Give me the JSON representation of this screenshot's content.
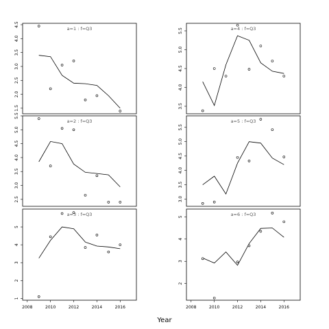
{
  "xlabel": "Year",
  "chart_data": [
    {
      "type": "scatter",
      "title": "a=1 : f=Q3",
      "x": [
        2009,
        2010,
        2011,
        2012,
        2013,
        2014,
        2016
      ],
      "points_y": [
        4.45,
        2.2,
        3.05,
        3.2,
        1.8,
        1.95,
        1.4
      ],
      "line_x": [
        2009,
        2010,
        2011,
        2012,
        2013,
        2014,
        2015,
        2016
      ],
      "line_y": [
        3.4,
        3.35,
        2.68,
        2.4,
        2.38,
        2.32,
        1.95,
        1.5
      ],
      "ylim": [
        1.3,
        4.55
      ],
      "xlim": [
        2007.6,
        2017.4
      ],
      "yticks": [
        1.5,
        2.0,
        2.5,
        3.0,
        3.5,
        4.0,
        4.5
      ],
      "ytick_labels": [
        "1.5",
        "2.0",
        "2.5",
        "3.0",
        "3.5",
        "4.0",
        "4.5"
      ]
    },
    {
      "type": "scatter",
      "title": "a=4 : f=Q3",
      "x": [
        2009,
        2010,
        2011,
        2012,
        2013,
        2014,
        2015,
        2016
      ],
      "points_y": [
        3.38,
        4.5,
        4.3,
        5.65,
        4.48,
        5.1,
        4.7,
        4.3
      ],
      "line_x": [
        2009,
        2010,
        2011,
        2012,
        2013,
        2014,
        2015,
        2016
      ],
      "line_y": [
        4.15,
        3.52,
        4.6,
        5.37,
        5.25,
        4.65,
        4.43,
        4.37
      ],
      "ylim": [
        3.3,
        5.7
      ],
      "xlim": [
        2007.6,
        2017.4
      ],
      "yticks": [
        3.5,
        4.0,
        4.5,
        5.0,
        5.5
      ],
      "ytick_labels": [
        "3.5",
        "4.0",
        "4.5",
        "5.0",
        "5.5"
      ]
    },
    {
      "type": "scatter",
      "title": "a=2 : f=Q3",
      "x": [
        2009,
        2010,
        2011,
        2012,
        2013,
        2014,
        2015,
        2016
      ],
      "points_y": [
        5.4,
        3.7,
        5.05,
        5.0,
        2.65,
        3.35,
        2.4,
        2.4
      ],
      "line_x": [
        2009,
        2010,
        2011,
        2012,
        2013,
        2014,
        2015,
        2016
      ],
      "line_y": [
        3.85,
        4.58,
        4.5,
        3.77,
        3.47,
        3.43,
        3.38,
        2.95
      ],
      "ylim": [
        2.25,
        5.5
      ],
      "xlim": [
        2007.6,
        2017.4
      ],
      "yticks": [
        2.5,
        3.0,
        3.5,
        4.0,
        4.5,
        5.0,
        5.5
      ],
      "ytick_labels": [
        "2.5",
        "3.0",
        "3.5",
        "4.0",
        "4.5",
        "5.0",
        "5.5"
      ]
    },
    {
      "type": "scatter",
      "title": "a=5 : f=Q3",
      "x": [
        2009,
        2010,
        2012,
        2013,
        2014,
        2015,
        2016
      ],
      "points_y": [
        2.85,
        2.9,
        4.45,
        4.33,
        5.78,
        5.42,
        4.47
      ],
      "line_x": [
        2009,
        2010,
        2011,
        2012,
        2013,
        2014,
        2015,
        2016
      ],
      "line_y": [
        3.5,
        3.8,
        3.18,
        4.25,
        5.0,
        4.95,
        4.43,
        4.2
      ],
      "ylim": [
        2.75,
        5.9
      ],
      "xlim": [
        2007.6,
        2017.4
      ],
      "yticks": [
        3.0,
        3.5,
        4.0,
        4.5,
        5.0,
        5.5
      ],
      "ytick_labels": [
        "3.0",
        "3.5",
        "4.0",
        "4.5",
        "5.0",
        "5.5"
      ]
    },
    {
      "type": "scatter",
      "title": "a=3 : f=Q3",
      "x": [
        2009,
        2010,
        2011,
        2012,
        2013,
        2014,
        2015,
        2016
      ],
      "points_y": [
        1.1,
        4.45,
        5.75,
        5.8,
        3.85,
        4.55,
        3.6,
        4.0
      ],
      "line_x": [
        2009,
        2010,
        2011,
        2012,
        2013,
        2014,
        2015,
        2016
      ],
      "line_y": [
        3.25,
        4.25,
        5.0,
        4.9,
        4.15,
        3.93,
        3.88,
        3.78
      ],
      "ylim": [
        0.9,
        6.0
      ],
      "xlim": [
        2007.6,
        2017.4
      ],
      "yticks": [
        1,
        2,
        3,
        4,
        5
      ],
      "ytick_labels": [
        "1",
        "2",
        "3",
        "4",
        "5"
      ]
    },
    {
      "type": "scatter",
      "title": "a=6 : f=Q3",
      "x": [
        2009,
        2010,
        2012,
        2013,
        2014,
        2015,
        2016
      ],
      "points_y": [
        3.12,
        1.35,
        2.97,
        3.7,
        4.35,
        5.17,
        4.78
      ],
      "line_x": [
        2009,
        2010,
        2011,
        2012,
        2013,
        2014,
        2015,
        2016
      ],
      "line_y": [
        3.15,
        2.92,
        3.42,
        2.82,
        3.8,
        4.48,
        4.5,
        4.08
      ],
      "ylim": [
        1.25,
        5.35
      ],
      "xlim": [
        2007.6,
        2017.4
      ],
      "yticks": [
        2,
        3,
        4,
        5
      ],
      "ytick_labels": [
        "2",
        "3",
        "4",
        "5"
      ]
    }
  ],
  "xticks": [
    2008,
    2010,
    2012,
    2014,
    2016
  ],
  "xtick_labels": [
    "2008",
    "2010",
    "2012",
    "2014",
    "2016"
  ]
}
